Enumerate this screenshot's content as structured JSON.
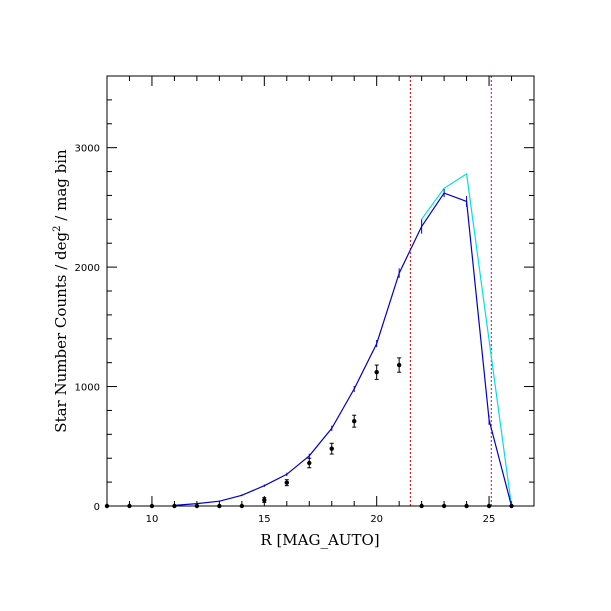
{
  "chart_data": {
    "type": "line",
    "title": "",
    "xlabel": "R [MAG_AUTO]",
    "ylabel_main": "Star Number Counts / deg",
    "ylabel_sup": "2",
    "ylabel_tail": " / mag bin",
    "xlim": [
      8,
      27
    ],
    "ylim": [
      0,
      3600
    ],
    "x_ticks_major": [
      10,
      15,
      20,
      25
    ],
    "y_ticks_major": [
      0,
      1000,
      2000,
      3000
    ],
    "colors": {
      "model_blue": "#0000cc",
      "model_cyan": "#00e0e0",
      "cut_red": "#dd0000",
      "cut_magenta": "#aa00cc",
      "observed": "#000000"
    },
    "series": [
      {
        "style": "line",
        "color": "#00e0e0",
        "x": [
          22,
          23,
          24,
          26
        ],
        "y": [
          2400,
          2660,
          2780,
          0
        ]
      },
      {
        "style": "line-errorbars",
        "color": "#0000cc",
        "x": [
          11,
          12,
          13,
          14,
          15,
          16,
          17,
          18,
          19,
          20,
          21,
          22,
          23,
          24,
          25,
          26
        ],
        "y": [
          5,
          20,
          40,
          90,
          170,
          265,
          420,
          650,
          980,
          1360,
          1950,
          2340,
          2620,
          2550,
          720,
          0
        ],
        "err": [
          2,
          4,
          6,
          8,
          10,
          14,
          18,
          22,
          25,
          30,
          40,
          60,
          35,
          45,
          40,
          2
        ]
      },
      {
        "style": "points-errorbars",
        "color": "#000000",
        "x": [
          8,
          9,
          10,
          11,
          12,
          13,
          14,
          15,
          16,
          17,
          18,
          19,
          20,
          21,
          22,
          23,
          24,
          25,
          26
        ],
        "y": [
          0,
          0,
          0,
          0,
          0,
          0,
          0,
          50,
          195,
          360,
          480,
          710,
          1120,
          1180,
          0,
          0,
          0,
          0,
          0
        ],
        "err": [
          0,
          0,
          0,
          0,
          0,
          0,
          0,
          20,
          25,
          40,
          45,
          50,
          60,
          60,
          0,
          0,
          0,
          0,
          0
        ]
      }
    ],
    "vertical_lines": [
      {
        "x": 21.5,
        "color": "#dd0000",
        "style": "dashed"
      },
      {
        "x": 25.1,
        "color": "#aa00cc",
        "style": "dashed"
      }
    ]
  }
}
